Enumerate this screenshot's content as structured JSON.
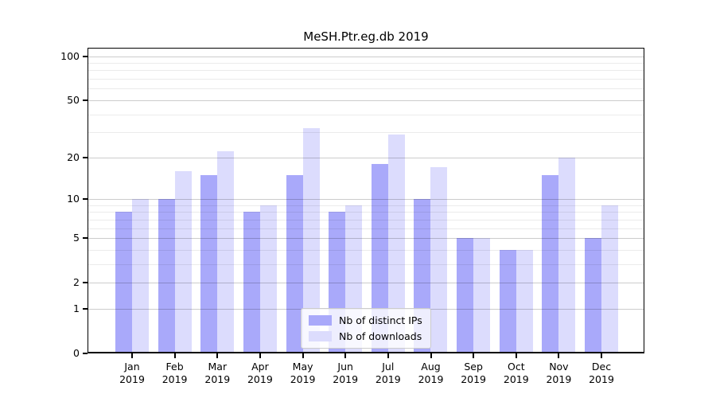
{
  "title": "MeSH.Ptr.eg.db 2019",
  "colors": {
    "distinct_ips": "#a9a9fa",
    "downloads": "#dcdcfd",
    "axis": "#000000",
    "grid_major": "rgba(0,0,0,0.20)",
    "grid_minor": "rgba(0,0,0,0.08)"
  },
  "legend": {
    "items": [
      {
        "label": "Nb of distinct IPs",
        "color_key": "distinct_ips"
      },
      {
        "label": "Nb of downloads",
        "color_key": "downloads"
      }
    ]
  },
  "axes": {
    "y_scale": "log1p",
    "y_ticks": [
      0,
      1,
      2,
      5,
      10,
      20,
      50,
      100
    ],
    "y_minor_ticks": [
      3,
      4,
      6,
      7,
      8,
      9,
      30,
      40,
      60,
      70,
      80,
      90
    ],
    "x_tick_months": [
      "Jan",
      "Feb",
      "Mar",
      "Apr",
      "May",
      "Jun",
      "Jul",
      "Aug",
      "Sep",
      "Oct",
      "Nov",
      "Dec"
    ],
    "x_tick_year": "2019"
  },
  "chart_data": {
    "type": "bar",
    "title": "MeSH.Ptr.eg.db 2019",
    "categories": [
      "Jan 2019",
      "Feb 2019",
      "Mar 2019",
      "Apr 2019",
      "May 2019",
      "Jun 2019",
      "Jul 2019",
      "Aug 2019",
      "Sep 2019",
      "Oct 2019",
      "Nov 2019",
      "Dec 2019"
    ],
    "series": [
      {
        "name": "Nb of distinct IPs",
        "key": "distinct_ips",
        "values": [
          8,
          10,
          15,
          8,
          15,
          8,
          18,
          10,
          5,
          4,
          15,
          5
        ]
      },
      {
        "name": "Nb of downloads",
        "key": "downloads",
        "values": [
          10,
          16,
          22,
          9,
          32,
          9,
          29,
          17,
          5,
          4,
          20,
          9
        ]
      }
    ],
    "xlabel": "",
    "ylabel": "",
    "yscale": "log1p",
    "ylim": [
      0,
      114
    ],
    "yticks": [
      0,
      1,
      2,
      5,
      10,
      20,
      50,
      100
    ],
    "grid": true,
    "legend_position": "inside lower-center"
  }
}
